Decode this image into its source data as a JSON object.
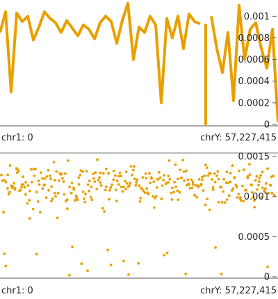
{
  "colors": {
    "accent": "#e8a000",
    "axis": "#555555",
    "text": "#222222"
  },
  "chart_data": [
    {
      "type": "line",
      "title": "",
      "xlabel": "",
      "ylabel": "",
      "x_start_label": "chr1: 0",
      "x_end_label": "chrY: 57,227,415",
      "ylim": [
        0,
        0.00115
      ],
      "yticks": [
        {
          "value": 0.001,
          "label": "0.001"
        },
        {
          "value": 0.0008,
          "label": "0.0008"
        },
        {
          "value": 0.0006,
          "label": "0.0006"
        },
        {
          "value": 0.0004,
          "label": "0.0004"
        },
        {
          "value": 0.0002,
          "label": "0.0002"
        },
        {
          "value": 0,
          "label": "0"
        }
      ],
      "grid": false,
      "x": [
        0,
        2,
        4,
        6,
        8,
        10,
        12,
        14,
        16,
        18,
        20,
        22,
        24,
        26,
        28,
        30,
        32,
        34,
        36,
        38,
        40,
        42,
        44,
        46,
        48,
        50,
        52,
        54,
        56,
        58,
        60,
        62,
        64,
        66,
        68,
        70,
        72,
        74,
        76,
        78,
        80,
        82,
        84,
        86,
        88,
        90,
        92,
        94,
        96,
        98,
        100
      ],
      "values": [
        0.00085,
        0.00104,
        0.0003,
        0.00103,
        0.00095,
        0.001,
        0.00078,
        0.0009,
        0.00104,
        0.00098,
        0.00094,
        0.00085,
        0.00096,
        0.00089,
        0.00082,
        0.00092,
        0.00088,
        0.00079,
        0.00094,
        0.001,
        0.00095,
        0.00075,
        0.00096,
        0.00112,
        0.0006,
        0.0009,
        0.00085,
        0.001,
        0.00092,
        0.0002,
        0.00098,
        0.0008,
        0.001,
        0.0007,
        0.00102,
        0.00095,
        0.00093,
        null,
        0.001,
        0.0007,
        0.00048,
        0.00085,
        0.00022,
        0.0011,
        0.0006,
        0.00088,
        0.00094,
        0.0007,
        0.00052,
        0.00088,
        2e-05
      ]
    },
    {
      "type": "scatter",
      "title": "",
      "xlabel": "",
      "ylabel": "",
      "x_start_label": "chr1: 0",
      "x_end_label": "chrY: 57,227,415",
      "ylim": [
        0,
        0.0017
      ],
      "yticks": [
        {
          "value": 0.0015,
          "label": "0.0015"
        },
        {
          "value": 0.001,
          "label": "0.001"
        },
        {
          "value": 0.0005,
          "label": "0.0005"
        },
        {
          "value": 0,
          "label": "0"
        }
      ],
      "grid": false,
      "point_count": 330,
      "y_center": 0.00115,
      "y_spread": 0.00025
    }
  ]
}
